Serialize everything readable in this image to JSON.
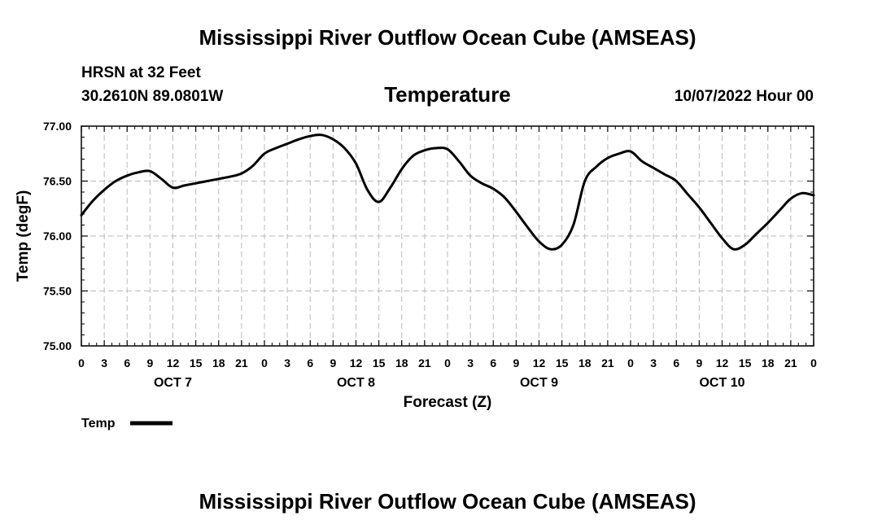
{
  "header": {
    "title": "Mississippi River Outflow Ocean Cube (AMSEAS)",
    "station": "HRSN at 32 Feet",
    "location": "30.2610N  89.0801W",
    "parameter": "Temperature",
    "datetime": "10/07/2022 Hour 00"
  },
  "footer": {
    "title": "Mississippi River Outflow Ocean Cube (AMSEAS)"
  },
  "legend": {
    "label": "Temp"
  },
  "colors": {
    "line": "#000000",
    "grid": "#bbbbbb",
    "background": "#ffffff"
  },
  "chart_data": {
    "type": "line",
    "title": "Temperature",
    "xlabel": "Forecast (Z)",
    "ylabel": "Temp (degF)",
    "ylim": [
      75.0,
      77.0
    ],
    "xlim_hours": [
      0,
      96
    ],
    "y_ticks": [
      "75.00",
      "75.50",
      "76.00",
      "76.50",
      "77.00"
    ],
    "y_tick_values": [
      75.0,
      75.5,
      76.0,
      76.5,
      77.0
    ],
    "x_tick_hours": [
      0,
      3,
      6,
      9,
      12,
      15,
      18,
      21,
      24,
      27,
      30,
      33,
      36,
      39,
      42,
      45,
      48,
      51,
      54,
      57,
      60,
      63,
      66,
      69,
      72,
      75,
      78,
      81,
      84,
      87,
      90,
      93,
      96
    ],
    "x_tick_labels": [
      "0",
      "3",
      "6",
      "9",
      "12",
      "15",
      "18",
      "21",
      "0",
      "3",
      "6",
      "9",
      "12",
      "15",
      "18",
      "21",
      "0",
      "3",
      "6",
      "9",
      "12",
      "15",
      "18",
      "21",
      "0",
      "3",
      "6",
      "9",
      "12",
      "15",
      "18",
      "21",
      "0"
    ],
    "day_labels": [
      {
        "label": "OCT 7",
        "center_hour": 12
      },
      {
        "label": "OCT 8",
        "center_hour": 36
      },
      {
        "label": "OCT 9",
        "center_hour": 60
      },
      {
        "label": "OCT 10",
        "center_hour": 84
      }
    ],
    "series": [
      {
        "name": "Temp",
        "x": [
          0,
          1.5,
          3,
          4.5,
          6,
          7.5,
          9,
          10.5,
          12,
          13.5,
          15,
          16.5,
          18,
          19.5,
          21,
          22.5,
          24,
          25.5,
          27,
          28.5,
          30,
          31.5,
          33,
          34.5,
          36,
          37.5,
          39,
          40.5,
          42,
          43.5,
          45,
          46.5,
          48,
          49.5,
          51,
          52.5,
          54,
          55.5,
          57,
          58.5,
          60,
          61.5,
          63,
          64.5,
          66,
          67.5,
          69,
          70.5,
          72,
          73.5,
          75,
          76.5,
          78,
          79.5,
          81,
          82.5,
          84,
          85.5,
          87,
          88.5,
          90,
          91.5,
          93,
          94.5,
          96
        ],
        "values": [
          76.19,
          76.32,
          76.42,
          76.5,
          76.55,
          76.58,
          76.59,
          76.52,
          76.44,
          76.46,
          76.48,
          76.5,
          76.52,
          76.54,
          76.57,
          76.64,
          76.75,
          76.8,
          76.84,
          76.88,
          76.91,
          76.92,
          76.88,
          76.8,
          76.66,
          76.42,
          76.31,
          76.44,
          76.61,
          76.73,
          76.78,
          76.8,
          76.79,
          76.68,
          76.55,
          76.48,
          76.43,
          76.35,
          76.22,
          76.08,
          75.95,
          75.88,
          75.92,
          76.1,
          76.5,
          76.63,
          76.71,
          76.75,
          76.77,
          76.68,
          76.62,
          76.56,
          76.5,
          76.38,
          76.26,
          76.12,
          75.98,
          75.88,
          75.92,
          76.02,
          76.12,
          76.23,
          76.34,
          76.39,
          76.37
        ]
      }
    ]
  }
}
